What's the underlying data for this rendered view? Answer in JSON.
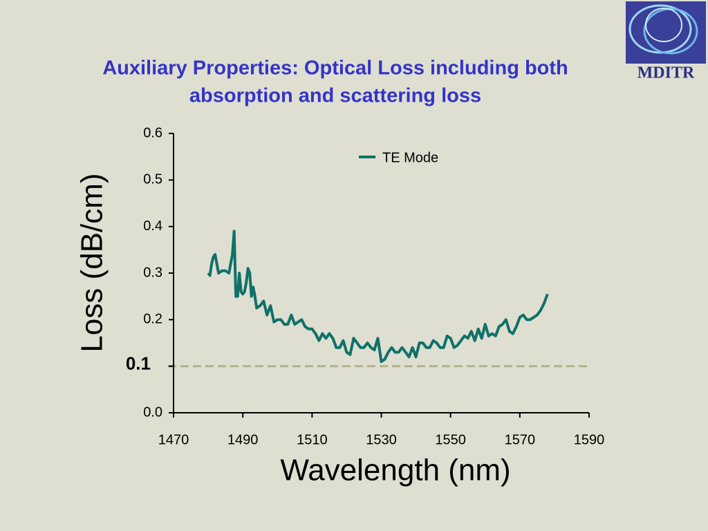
{
  "chart_data": {
    "type": "line",
    "title": [
      "Auxiliary Properties:  Optical Loss including both",
      "absorption and scattering loss"
    ],
    "logo": "MDITR",
    "x_label": "Wavelength (nm)",
    "y_label": "Loss (dB/cm)",
    "xlim": [
      1470,
      1590
    ],
    "xticks": [
      1470,
      1490,
      1510,
      1530,
      1550,
      1570,
      1590
    ],
    "ylim": [
      0,
      0.6
    ],
    "yticks": [
      {
        "value": 0,
        "label": "0.0"
      },
      0.1,
      0.2,
      0.3,
      0.4,
      0.5,
      0.6
    ],
    "hide_ytick_labels": [
      0.1
    ],
    "reference_line": {
      "value": 0.1,
      "label": "0.1",
      "color": "#b3b38a"
    },
    "legend": "top",
    "x": [
      1480,
      1480.5,
      1481,
      1481.5,
      1482,
      1483,
      1484,
      1485,
      1486,
      1487,
      1487.5,
      1488,
      1488.5,
      1489,
      1489.5,
      1490,
      1490.5,
      1491,
      1491.5,
      1492,
      1492.5,
      1493,
      1493.5,
      1494,
      1495,
      1496,
      1497,
      1498,
      1499,
      1500,
      1501,
      1502,
      1503,
      1504,
      1505,
      1506,
      1507,
      1508,
      1509,
      1510,
      1511,
      1512,
      1513,
      1514,
      1515,
      1516,
      1517,
      1518,
      1519,
      1520,
      1521,
      1522,
      1523,
      1524,
      1525,
      1526,
      1527,
      1528,
      1529,
      1530,
      1531,
      1532,
      1533,
      1534,
      1535,
      1536,
      1537,
      1538,
      1539,
      1540,
      1541,
      1542,
      1543,
      1544,
      1545,
      1546,
      1547,
      1548,
      1549,
      1550,
      1551,
      1552,
      1553,
      1554,
      1555,
      1556,
      1557,
      1558,
      1559,
      1560,
      1561,
      1562,
      1563,
      1564,
      1565,
      1566,
      1567,
      1568,
      1569,
      1570,
      1571,
      1572,
      1573,
      1574,
      1575,
      1576,
      1577,
      1578
    ],
    "series": [
      {
        "name": "TE Mode",
        "color": "#0f7168",
        "values": [
          0.3,
          0.295,
          0.32,
          0.335,
          0.34,
          0.3,
          0.305,
          0.305,
          0.3,
          0.34,
          0.39,
          0.25,
          0.25,
          0.3,
          0.26,
          0.255,
          0.26,
          0.28,
          0.31,
          0.3,
          0.25,
          0.27,
          0.25,
          0.225,
          0.23,
          0.24,
          0.21,
          0.23,
          0.195,
          0.2,
          0.2,
          0.19,
          0.19,
          0.21,
          0.19,
          0.195,
          0.2,
          0.185,
          0.18,
          0.18,
          0.17,
          0.155,
          0.17,
          0.16,
          0.17,
          0.16,
          0.14,
          0.14,
          0.155,
          0.13,
          0.125,
          0.16,
          0.15,
          0.14,
          0.14,
          0.15,
          0.14,
          0.135,
          0.16,
          0.11,
          0.115,
          0.13,
          0.14,
          0.13,
          0.13,
          0.14,
          0.13,
          0.12,
          0.14,
          0.12,
          0.15,
          0.15,
          0.14,
          0.14,
          0.155,
          0.15,
          0.14,
          0.14,
          0.165,
          0.16,
          0.14,
          0.145,
          0.155,
          0.165,
          0.16,
          0.175,
          0.155,
          0.18,
          0.16,
          0.19,
          0.165,
          0.17,
          0.165,
          0.185,
          0.19,
          0.2,
          0.175,
          0.17,
          0.185,
          0.205,
          0.21,
          0.2,
          0.2,
          0.205,
          0.21,
          0.22,
          0.235,
          0.255
        ]
      }
    ]
  }
}
